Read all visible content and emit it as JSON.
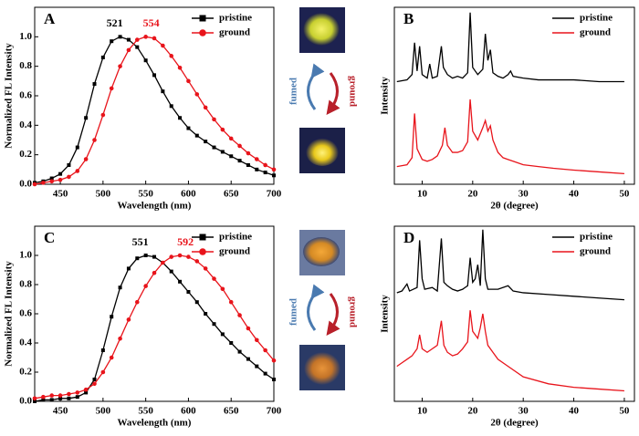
{
  "chart_data": [
    {
      "type": "line",
      "panel": "A",
      "xlabel": "Wavelength (nm)",
      "ylabel": "Normalized FL Intensity",
      "xlim": [
        420,
        700
      ],
      "ylim": [
        0,
        1.2
      ],
      "xticks": [
        450,
        500,
        550,
        600,
        650,
        700
      ],
      "yticks": [
        {
          "value": 0,
          "label": "0.0"
        },
        0.2,
        0.4,
        0.6,
        0.8,
        {
          "value": 1,
          "label": "1.0"
        }
      ],
      "annotations": [
        {
          "text": "521",
          "color": "#000000"
        },
        {
          "text": "554",
          "color": "#e8141b"
        }
      ],
      "legend": "upper right",
      "x": [
        420,
        430,
        440,
        450,
        460,
        470,
        480,
        490,
        500,
        510,
        520,
        530,
        540,
        550,
        560,
        570,
        580,
        590,
        600,
        610,
        620,
        630,
        640,
        650,
        660,
        670,
        680,
        690,
        700
      ],
      "series": [
        {
          "name": "pristine",
          "color": "#000000",
          "marker": "square",
          "values": [
            0.01,
            0.02,
            0.04,
            0.07,
            0.13,
            0.25,
            0.45,
            0.68,
            0.86,
            0.97,
            1.0,
            0.98,
            0.93,
            0.84,
            0.74,
            0.63,
            0.53,
            0.45,
            0.38,
            0.33,
            0.29,
            0.25,
            0.22,
            0.19,
            0.16,
            0.13,
            0.1,
            0.08,
            0.06
          ]
        },
        {
          "name": "ground",
          "color": "#e8141b",
          "marker": "circle",
          "values": [
            0.0,
            0.01,
            0.02,
            0.03,
            0.05,
            0.09,
            0.17,
            0.3,
            0.47,
            0.65,
            0.8,
            0.91,
            0.98,
            1.0,
            0.99,
            0.94,
            0.87,
            0.79,
            0.7,
            0.61,
            0.52,
            0.44,
            0.37,
            0.31,
            0.26,
            0.21,
            0.17,
            0.13,
            0.1
          ]
        }
      ]
    },
    {
      "type": "line",
      "panel": "B",
      "xlabel": "2θ (degree)",
      "ylabel": "Intensity",
      "xlim": [
        4.5,
        52
      ],
      "ylim": [
        0,
        100
      ],
      "xticks": [
        10,
        20,
        30,
        40,
        50
      ],
      "legend": "upper right",
      "series": [
        {
          "name": "pristine",
          "color": "#000000",
          "x": [
            5,
            7,
            8,
            8.5,
            9,
            9.5,
            10,
            11,
            11.5,
            12,
            13,
            13.8,
            14.2,
            15,
            16,
            17,
            18,
            19,
            19.5,
            20,
            21,
            22,
            22.5,
            23,
            23.5,
            24,
            25,
            26,
            27,
            27.5,
            28,
            30,
            33,
            36,
            40,
            45,
            50
          ],
          "values": [
            58,
            59,
            62,
            80,
            64,
            78,
            62,
            60,
            68,
            60,
            61,
            78,
            66,
            62,
            60,
            61,
            60,
            63,
            97,
            66,
            62,
            65,
            85,
            70,
            76,
            63,
            61,
            60,
            62,
            64,
            61,
            60,
            59,
            59,
            59,
            58,
            58
          ]
        },
        {
          "name": "ground",
          "color": "#e8141b",
          "x": [
            5,
            7,
            8,
            8.5,
            9,
            10,
            11,
            12,
            13,
            14,
            14.5,
            15,
            16,
            17,
            18,
            19,
            19.5,
            20,
            21,
            22,
            22.5,
            23,
            23.5,
            24,
            25,
            26,
            27,
            28,
            30,
            33,
            36,
            40,
            45,
            50
          ],
          "values": [
            10,
            11,
            15,
            40,
            20,
            14,
            13,
            14,
            16,
            22,
            32,
            22,
            18,
            18,
            19,
            24,
            48,
            30,
            25,
            32,
            36,
            30,
            33,
            25,
            18,
            15,
            14,
            13,
            11,
            10,
            9,
            8,
            7,
            6
          ]
        }
      ]
    },
    {
      "type": "line",
      "panel": "C",
      "xlabel": "Wavelength (nm)",
      "ylabel": "Normalized FL Intensity",
      "xlim": [
        420,
        700
      ],
      "ylim": [
        0,
        1.2
      ],
      "xticks": [
        450,
        500,
        550,
        600,
        650,
        700
      ],
      "yticks": [
        {
          "value": 0,
          "label": "0.0"
        },
        0.2,
        0.4,
        0.6,
        0.8,
        {
          "value": 1,
          "label": "1.0"
        }
      ],
      "annotations": [
        {
          "text": "551",
          "color": "#000000"
        },
        {
          "text": "592",
          "color": "#e8141b"
        }
      ],
      "legend": "upper right",
      "x": [
        420,
        430,
        440,
        450,
        460,
        470,
        480,
        490,
        500,
        510,
        520,
        530,
        540,
        550,
        560,
        570,
        580,
        590,
        600,
        610,
        620,
        630,
        640,
        650,
        660,
        670,
        680,
        690,
        700
      ],
      "series": [
        {
          "name": "pristine",
          "color": "#000000",
          "marker": "square",
          "values": [
            0.0,
            0.01,
            0.01,
            0.02,
            0.02,
            0.03,
            0.06,
            0.15,
            0.35,
            0.58,
            0.78,
            0.91,
            0.98,
            1.0,
            0.99,
            0.95,
            0.89,
            0.82,
            0.75,
            0.68,
            0.6,
            0.53,
            0.46,
            0.4,
            0.34,
            0.29,
            0.24,
            0.19,
            0.15
          ]
        },
        {
          "name": "ground",
          "color": "#e8141b",
          "marker": "circle",
          "values": [
            0.02,
            0.03,
            0.04,
            0.04,
            0.05,
            0.06,
            0.08,
            0.12,
            0.2,
            0.3,
            0.43,
            0.56,
            0.68,
            0.79,
            0.88,
            0.95,
            0.99,
            1.0,
            0.99,
            0.96,
            0.91,
            0.84,
            0.77,
            0.68,
            0.59,
            0.5,
            0.42,
            0.35,
            0.28
          ]
        }
      ]
    },
    {
      "type": "line",
      "panel": "D",
      "xlabel": "2θ (degree)",
      "ylabel": "Intensity",
      "xlim": [
        4.5,
        52
      ],
      "ylim": [
        0,
        100
      ],
      "xticks": [
        10,
        20,
        30,
        40,
        50
      ],
      "legend": "upper right",
      "series": [
        {
          "name": "pristine",
          "color": "#000000",
          "x": [
            5,
            6,
            7,
            7.5,
            9,
            9.5,
            10,
            10.5,
            12,
            13,
            13.8,
            14.3,
            15,
            16,
            17,
            18,
            19,
            19.5,
            20,
            20.5,
            21,
            21.5,
            22,
            22.5,
            23,
            25,
            27,
            28,
            30,
            35,
            40,
            45,
            50
          ],
          "values": [
            62,
            63,
            67,
            63,
            65,
            92,
            70,
            64,
            65,
            63,
            93,
            68,
            66,
            64,
            63,
            64,
            66,
            82,
            68,
            70,
            78,
            66,
            98,
            70,
            64,
            64,
            66,
            63,
            62,
            61,
            60,
            59,
            58
          ]
        },
        {
          "name": "ground",
          "color": "#e8141b",
          "x": [
            5,
            6,
            7,
            8,
            9,
            9.5,
            10,
            11,
            12,
            13,
            13.8,
            14.3,
            15,
            16,
            17,
            18,
            19,
            19.5,
            20,
            21,
            21.5,
            22,
            22.5,
            23,
            24,
            25,
            27,
            30,
            35,
            40,
            45,
            50
          ],
          "values": [
            20,
            22,
            24,
            26,
            30,
            38,
            30,
            28,
            30,
            32,
            46,
            32,
            28,
            26,
            27,
            30,
            34,
            52,
            40,
            36,
            42,
            50,
            40,
            32,
            28,
            24,
            20,
            14,
            10,
            8,
            7,
            6
          ]
        }
      ]
    }
  ],
  "insets": [
    {
      "left": "fumed",
      "right": "ground"
    },
    {
      "left": "fumed",
      "right": "ground"
    }
  ]
}
